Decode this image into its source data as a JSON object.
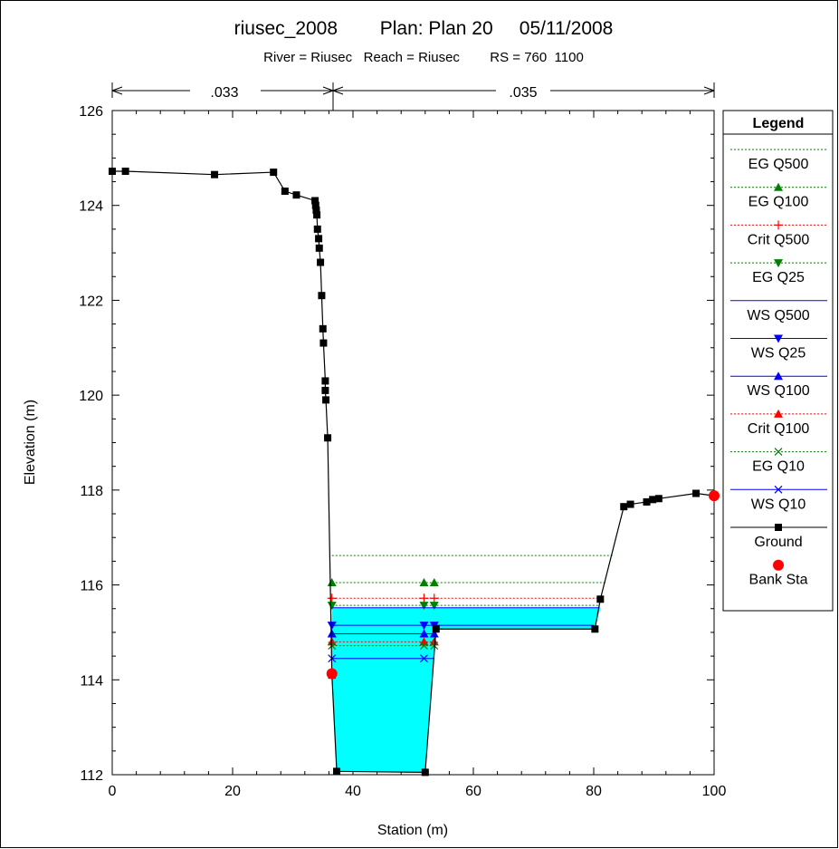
{
  "title": {
    "line1": "riusec_2008        Plan: Plan 20     05/11/2008",
    "line2": "River = Riusec   Reach = Riusec        RS = 760  1100"
  },
  "roughness": {
    "left": ".033",
    "right": ".035"
  },
  "legend": {
    "title": "Legend",
    "items": [
      {
        "label": "EG Q500",
        "color": "#008000",
        "dash": "dotted",
        "marker": "none"
      },
      {
        "label": "EG Q100",
        "color": "#008000",
        "dash": "dotted",
        "marker": "tri-up"
      },
      {
        "label": "Crit Q500",
        "color": "#ff0000",
        "dash": "dotted",
        "marker": "plus"
      },
      {
        "label": "EG Q25",
        "color": "#008000",
        "dash": "dotted",
        "marker": "tri-down"
      },
      {
        "label": "WS Q500",
        "color": "#0000ff",
        "dash": "solid",
        "marker": "none"
      },
      {
        "label": "WS Q25",
        "color": "#0000ff",
        "dash": "solid",
        "marker": "tri-down"
      },
      {
        "label": "WS Q100",
        "color": "#0000ff",
        "dash": "solid",
        "marker": "tri-up"
      },
      {
        "label": "Crit Q100",
        "color": "#ff0000",
        "dash": "dotted",
        "marker": "tri-up"
      },
      {
        "label": "EG Q10",
        "color": "#008000",
        "dash": "dotted",
        "marker": "x"
      },
      {
        "label": "WS Q10",
        "color": "#0000ff",
        "dash": "solid",
        "marker": "x"
      },
      {
        "label": "Ground",
        "color": "#000000",
        "dash": "solid",
        "marker": "square"
      },
      {
        "label": "Bank Sta",
        "color": "#ff0000",
        "dash": "none",
        "marker": "circle"
      }
    ]
  },
  "chart_data": {
    "type": "line",
    "xlabel": "Station (m)",
    "ylabel": "Elevation (m)",
    "xlim": [
      0,
      100
    ],
    "ylim": [
      112,
      126
    ],
    "xticks": [
      0,
      20,
      40,
      60,
      80,
      100
    ],
    "yticks": [
      112,
      114,
      116,
      118,
      120,
      122,
      124,
      126
    ],
    "roughness_breaks": [
      0,
      36.5,
      100
    ],
    "ground": [
      [
        0,
        124.72
      ],
      [
        2.2,
        124.72
      ],
      [
        17,
        124.65
      ],
      [
        26.8,
        124.7
      ],
      [
        28.7,
        124.3
      ],
      [
        30.6,
        124.22
      ],
      [
        33.7,
        124.1
      ],
      [
        33.8,
        124.0
      ],
      [
        33.9,
        123.9
      ],
      [
        34.0,
        123.8
      ],
      [
        34.1,
        123.5
      ],
      [
        34.3,
        123.3
      ],
      [
        34.4,
        123.1
      ],
      [
        34.6,
        122.8
      ],
      [
        34.8,
        122.1
      ],
      [
        35.0,
        121.4
      ],
      [
        35.1,
        121.1
      ],
      [
        35.4,
        120.3
      ],
      [
        35.4,
        120.1
      ],
      [
        35.5,
        119.9
      ],
      [
        35.8,
        119.1
      ],
      [
        36.5,
        114.1
      ],
      [
        37.3,
        112.07
      ],
      [
        52.0,
        112.05
      ],
      [
        53.8,
        115.07
      ],
      [
        80.2,
        115.07
      ],
      [
        81.1,
        115.7
      ],
      [
        85.0,
        117.65
      ],
      [
        86.1,
        117.7
      ],
      [
        88.8,
        117.75
      ],
      [
        89.8,
        117.8
      ],
      [
        90.8,
        117.82
      ],
      [
        97.0,
        117.93
      ],
      [
        100,
        117.88
      ]
    ],
    "bank_stations": [
      [
        36.5,
        114.13
      ],
      [
        100,
        117.88
      ]
    ],
    "water_fill": {
      "ws": 115.52,
      "polygon": [
        [
          36.5,
          115.52
        ],
        [
          36.5,
          114.1
        ],
        [
          37.3,
          112.07
        ],
        [
          52.0,
          112.05
        ],
        [
          53.8,
          115.07
        ],
        [
          80.2,
          115.07
        ],
        [
          81.1,
          115.52
        ]
      ]
    },
    "profiles": [
      {
        "name": "EG Q500",
        "y": 116.62,
        "x0": 36.5,
        "x1": 83.3,
        "color": "#008000",
        "dash": "dotted",
        "marker": "none"
      },
      {
        "name": "EG Q100",
        "y": 116.05,
        "x0": 36.5,
        "x1": 82.2,
        "color": "#008000",
        "dash": "dotted",
        "marker": "tri-up"
      },
      {
        "name": "Crit Q500",
        "y": 115.72,
        "x0": 36.5,
        "x1": 81.3,
        "color": "#ff0000",
        "dash": "dotted",
        "marker": "plus"
      },
      {
        "name": "EG Q25",
        "y": 115.57,
        "x0": 36.5,
        "x1": 80.9,
        "color": "#008000",
        "dash": "dotted",
        "marker": "tri-down"
      },
      {
        "name": "WS Q500",
        "y": 115.52,
        "x0": 36.5,
        "x1": 81.0,
        "color": "#0000ff",
        "dash": "solid",
        "marker": "none"
      },
      {
        "name": "WS Q25",
        "y": 115.15,
        "x0": 36.5,
        "x1": 80.0,
        "color": "#0000ff",
        "dash": "solid",
        "marker": "tri-down"
      },
      {
        "name": "WS Q100",
        "y": 114.97,
        "x0": 36.5,
        "x1": 53.6,
        "color": "#0000ff",
        "dash": "solid",
        "marker": "tri-up"
      },
      {
        "name": "Crit Q100",
        "y": 114.8,
        "x0": 36.5,
        "x1": 53.6,
        "color": "#ff0000",
        "dash": "dotted",
        "marker": "tri-up"
      },
      {
        "name": "EG Q10",
        "y": 114.72,
        "x0": 36.5,
        "x1": 53.5,
        "color": "#008000",
        "dash": "dotted",
        "marker": "x"
      },
      {
        "name": "WS Q10",
        "y": 114.45,
        "x0": 36.5,
        "x1": 53.4,
        "color": "#0000ff",
        "dash": "solid",
        "marker": "x"
      }
    ],
    "marker_x": [
      36.5,
      51.8,
      53.5
    ]
  }
}
